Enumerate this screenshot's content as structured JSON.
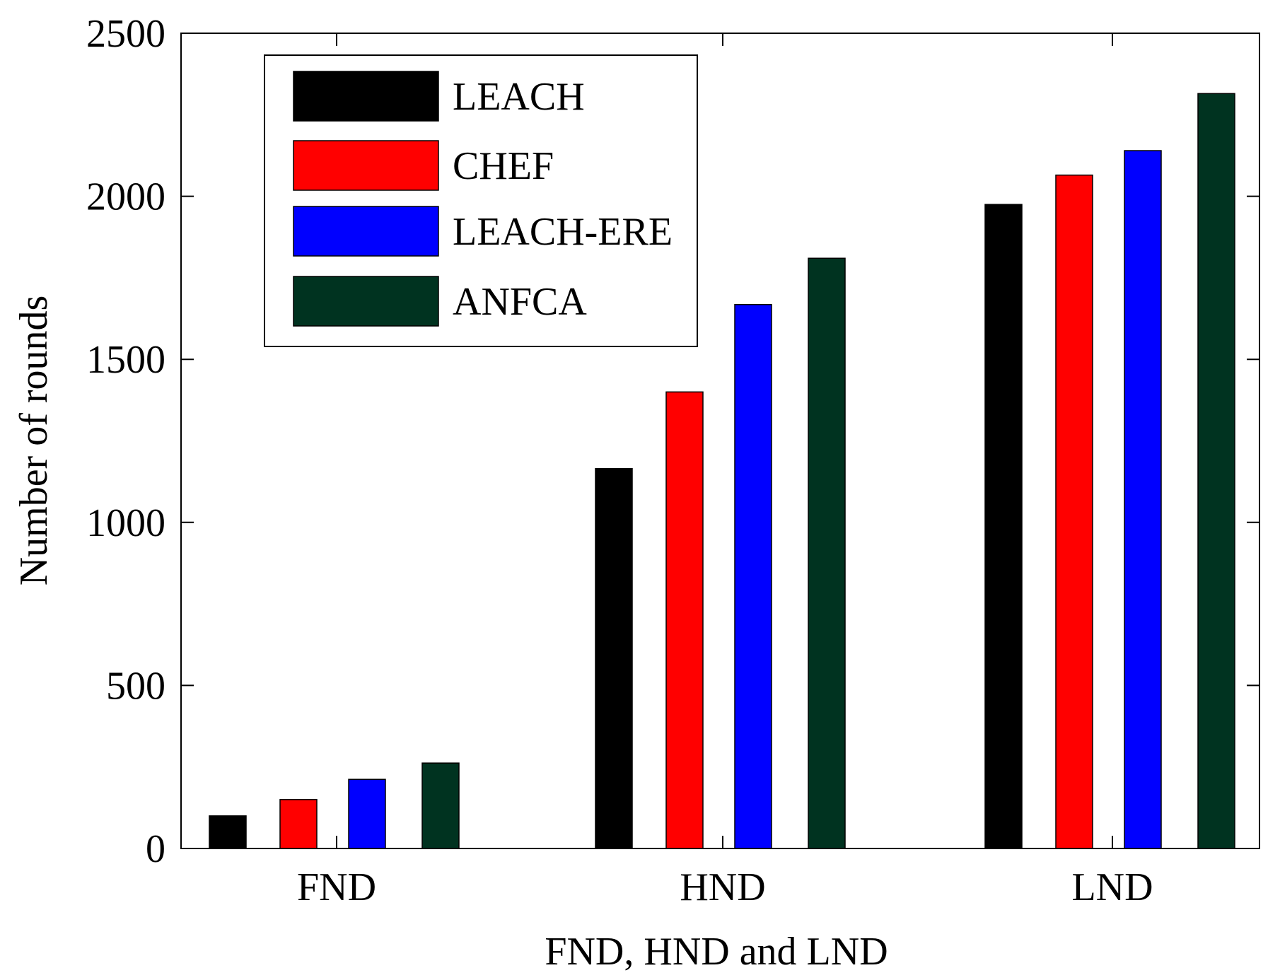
{
  "chart_data": {
    "type": "bar",
    "title": "",
    "xlabel": "FND, HND and LND",
    "ylabel": "Number of rounds",
    "categories": [
      "FND",
      "HND",
      "LND"
    ],
    "ylim": [
      0,
      2500
    ],
    "yticks": [
      0,
      500,
      1000,
      1500,
      2000,
      2500
    ],
    "grid": false,
    "legend_position": "top-left",
    "series": [
      {
        "name": "LEACH",
        "color": "#000000",
        "values": [
          100,
          1165,
          1975
        ]
      },
      {
        "name": "CHEF",
        "color": "#ff0000",
        "values": [
          150,
          1400,
          2065
        ]
      },
      {
        "name": "LEACH-ERE",
        "color": "#0000ff",
        "values": [
          212,
          1668,
          2140
        ]
      },
      {
        "name": "ANFCA",
        "color": "#003320",
        "values": [
          262,
          1810,
          2315
        ]
      }
    ]
  }
}
